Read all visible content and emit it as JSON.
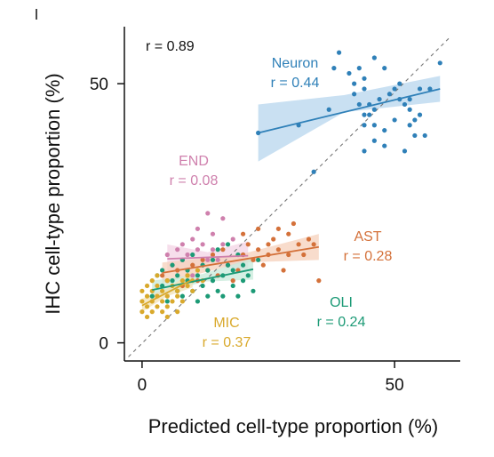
{
  "chart_data": {
    "type": "scatter",
    "xlabel": "Predicted cell-type proportion (%)",
    "ylabel": "IHC cell-type proportion (%)",
    "xlim": [
      -3.5,
      63
    ],
    "ylim": [
      -3.5,
      61
    ],
    "xticks": [
      0,
      50
    ],
    "yticks": [
      0,
      50
    ],
    "xtick_labels": [
      "0",
      "50"
    ],
    "ytick_labels": [
      "0",
      "50"
    ],
    "grid": false,
    "identity_line": true,
    "overall_r_text": "r = 0.89",
    "series": [
      {
        "name": "Neuron",
        "r_text": "r = 0.44",
        "color": "#2f80b8",
        "band_color": "#b7d5ee",
        "fit": {
          "x": [
            23,
            59
          ],
          "y": [
            40.5,
            49
          ],
          "band": [
            [
              23,
              35,
              46
            ],
            [
              40,
              44.5,
              47.8
            ],
            [
              59,
              46.5,
              51.5
            ]
          ]
        },
        "points": [
          [
            23,
            40.5
          ],
          [
            31,
            42
          ],
          [
            34,
            33
          ],
          [
            37,
            45
          ],
          [
            38,
            53
          ],
          [
            39,
            56
          ],
          [
            41,
            52
          ],
          [
            42,
            50
          ],
          [
            42,
            48
          ],
          [
            43,
            53
          ],
          [
            43,
            46
          ],
          [
            44,
            51
          ],
          [
            44,
            49
          ],
          [
            44,
            44
          ],
          [
            44,
            42
          ],
          [
            44,
            37
          ],
          [
            45,
            44
          ],
          [
            45,
            46
          ],
          [
            46,
            45
          ],
          [
            46,
            42
          ],
          [
            46,
            55
          ],
          [
            46,
            39
          ],
          [
            47,
            47
          ],
          [
            48,
            53
          ],
          [
            48,
            41
          ],
          [
            48,
            38
          ],
          [
            49,
            48
          ],
          [
            50,
            49
          ],
          [
            50,
            43
          ],
          [
            51,
            50
          ],
          [
            51,
            47
          ],
          [
            52,
            37
          ],
          [
            52,
            46
          ],
          [
            53,
            45
          ],
          [
            53,
            42
          ],
          [
            53,
            47
          ],
          [
            54,
            43
          ],
          [
            54,
            40
          ],
          [
            55,
            49
          ],
          [
            55,
            44
          ],
          [
            56,
            40
          ],
          [
            57,
            49
          ],
          [
            59,
            54
          ]
        ]
      },
      {
        "name": "END",
        "r_text": "r = 0.08",
        "color": "#cf80ad",
        "band_color": "#f3d3e4",
        "fit": {
          "x": [
            5,
            21
          ],
          "y": [
            16.2,
            16.8
          ],
          "band": [
            [
              5,
              13.5,
              19
            ],
            [
              13,
              15.3,
              17.5
            ],
            [
              21,
              14,
              19.6
            ]
          ]
        },
        "points": [
          [
            5,
            17
          ],
          [
            6,
            15
          ],
          [
            7,
            18
          ],
          [
            8,
            19
          ],
          [
            8,
            16
          ],
          [
            9,
            17
          ],
          [
            10,
            13
          ],
          [
            10,
            20
          ],
          [
            11,
            18
          ],
          [
            11,
            22
          ],
          [
            12,
            15
          ],
          [
            12,
            19
          ],
          [
            13,
            16
          ],
          [
            13,
            25
          ],
          [
            14,
            18
          ],
          [
            14,
            21
          ],
          [
            15,
            16
          ],
          [
            16,
            19
          ],
          [
            16,
            24
          ],
          [
            17,
            15
          ],
          [
            18,
            20
          ],
          [
            20,
            17
          ]
        ]
      },
      {
        "name": "AST",
        "r_text": "r = 0.28",
        "color": "#d4713a",
        "band_color": "#f6d0bb",
        "fit": {
          "x": [
            4,
            35
          ],
          "y": [
            13.5,
            18.5
          ],
          "band": [
            [
              4,
              11.5,
              15.5
            ],
            [
              20,
              15.5,
              17.2
            ],
            [
              35,
              16,
              21
            ]
          ]
        },
        "points": [
          [
            4,
            13
          ],
          [
            5,
            12
          ],
          [
            7,
            14
          ],
          [
            8,
            11
          ],
          [
            9,
            13
          ],
          [
            10,
            15
          ],
          [
            11,
            12
          ],
          [
            12,
            16
          ],
          [
            13,
            14
          ],
          [
            14,
            17
          ],
          [
            15,
            13
          ],
          [
            16,
            18
          ],
          [
            17,
            15
          ],
          [
            18,
            12
          ],
          [
            19,
            14
          ],
          [
            20,
            17
          ],
          [
            21,
            19
          ],
          [
            22,
            16
          ],
          [
            23,
            18
          ],
          [
            24,
            15
          ],
          [
            25,
            17
          ],
          [
            26,
            20
          ],
          [
            27,
            18
          ],
          [
            28,
            14
          ],
          [
            29,
            21
          ],
          [
            29,
            17
          ],
          [
            30,
            23
          ],
          [
            31,
            19
          ],
          [
            32,
            17
          ],
          [
            33,
            20
          ],
          [
            34,
            19
          ],
          [
            35,
            12
          ],
          [
            20,
            21
          ],
          [
            23,
            22
          ],
          [
            25,
            19
          ],
          [
            27,
            22
          ]
        ]
      },
      {
        "name": "OLI",
        "r_text": "r = 0.24",
        "color": "#1c9a76",
        "band_color": "#c7ead9",
        "fit": {
          "x": [
            2,
            22
          ],
          "y": [
            10.2,
            14.2
          ],
          "band": [
            [
              2,
              8.5,
              12
            ],
            [
              12,
              11.8,
              13.3
            ],
            [
              22,
              12.2,
              16.4
            ]
          ]
        },
        "points": [
          [
            2,
            9
          ],
          [
            3,
            13
          ],
          [
            4,
            11
          ],
          [
            4,
            14
          ],
          [
            5,
            8
          ],
          [
            6,
            12
          ],
          [
            6,
            15
          ],
          [
            7,
            10
          ],
          [
            7,
            13
          ],
          [
            8,
            9
          ],
          [
            8,
            16
          ],
          [
            9,
            12
          ],
          [
            9,
            14
          ],
          [
            10,
            10
          ],
          [
            10,
            17
          ],
          [
            11,
            13
          ],
          [
            11,
            8
          ],
          [
            12,
            15
          ],
          [
            12,
            11
          ],
          [
            13,
            9
          ],
          [
            13,
            14
          ],
          [
            14,
            12
          ],
          [
            14,
            16
          ],
          [
            15,
            10
          ],
          [
            15,
            18
          ],
          [
            16,
            13
          ],
          [
            16,
            9
          ],
          [
            17,
            15
          ],
          [
            17,
            19
          ],
          [
            18,
            11
          ],
          [
            18,
            14
          ],
          [
            19,
            17
          ],
          [
            19,
            9
          ],
          [
            20,
            12
          ],
          [
            20,
            15
          ],
          [
            21,
            13
          ],
          [
            22,
            10
          ],
          [
            23,
            16
          ]
        ]
      },
      {
        "name": "MIC",
        "r_text": "r = 0.37",
        "color": "#d9a92c",
        "band_color": "#f3e2b4",
        "fit": {
          "x": [
            0,
            10
          ],
          "y": [
            7.2,
            12.2
          ],
          "band": [
            [
              0,
              6,
              8.5
            ],
            [
              5,
              9,
              10.5
            ],
            [
              10,
              10.7,
              13.8
            ]
          ]
        },
        "points": [
          [
            0,
            6
          ],
          [
            0,
            8
          ],
          [
            0,
            10
          ],
          [
            1,
            7
          ],
          [
            1,
            9
          ],
          [
            1,
            11
          ],
          [
            1,
            5
          ],
          [
            2,
            6
          ],
          [
            2,
            8
          ],
          [
            2,
            10
          ],
          [
            2,
            12
          ],
          [
            3,
            7
          ],
          [
            3,
            9
          ],
          [
            3,
            11
          ],
          [
            4,
            6
          ],
          [
            4,
            8
          ],
          [
            4,
            10
          ],
          [
            5,
            7
          ],
          [
            5,
            9
          ],
          [
            5,
            12
          ],
          [
            6,
            8
          ],
          [
            6,
            11
          ],
          [
            7,
            9
          ],
          [
            7,
            10
          ],
          [
            8,
            8
          ],
          [
            8,
            12
          ],
          [
            9,
            11
          ],
          [
            9,
            13
          ],
          [
            10,
            10
          ],
          [
            10,
            12
          ],
          [
            11,
            14
          ],
          [
            12,
            12
          ],
          [
            3,
            13
          ],
          [
            5,
            5
          ],
          [
            7,
            6
          ]
        ]
      }
    ]
  }
}
